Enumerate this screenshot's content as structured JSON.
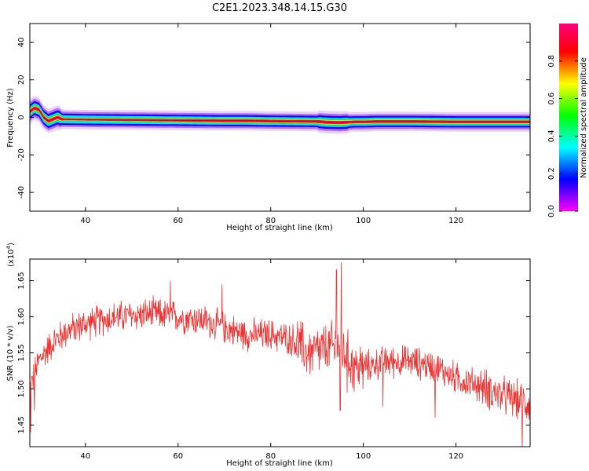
{
  "figure": {
    "title": "C2E1.2023.348.14.15.G30"
  },
  "chart_data": [
    {
      "type": "heatmap",
      "name": "spectrogram",
      "xlabel": "Height of straight line (km)",
      "ylabel": "Frequency (Hz)",
      "xlim": [
        28,
        136
      ],
      "ylim": [
        -50,
        50
      ],
      "x_ticks": [
        40,
        60,
        80,
        100,
        120
      ],
      "y_ticks": [
        -40,
        -20,
        0,
        20,
        40
      ],
      "colorbar": {
        "label": "Normalized spectral amplitude",
        "range": [
          0,
          1
        ],
        "ticks": [
          "0.0",
          "0.2",
          "0.4",
          "0.6",
          "0.8"
        ],
        "colormap": [
          "#ff00ff",
          "#0000ff",
          "#00ffff",
          "#00ff00",
          "#ffff00",
          "#ff0000",
          "#ff007f"
        ]
      },
      "ridge": {
        "x": [
          28,
          29,
          30,
          31,
          32,
          33,
          34,
          35,
          40,
          50,
          60,
          70,
          75,
          80,
          90,
          92,
          95,
          98,
          100,
          103,
          110,
          115,
          120,
          130,
          136
        ],
        "freq": [
          3,
          5,
          4,
          0,
          -2,
          -1,
          0,
          -1,
          -1.2,
          -1.4,
          -1.6,
          -1.8,
          -1.8,
          -2,
          -2.2,
          -2.6,
          -2.8,
          -2.4,
          -2.4,
          -2.2,
          -2.2,
          -2.3,
          -2.4,
          -2.4,
          -2.4
        ]
      }
    },
    {
      "type": "line",
      "name": "snr",
      "xlabel": "Height of straight line (km)",
      "ylabel": "SNR (10 * v/v)",
      "y_multiplier_label": "(x10",
      "y_multiplier_exp": "4",
      "y_multiplier_close": ")",
      "xlim": [
        28,
        136
      ],
      "ylim": [
        1.42,
        1.68
      ],
      "x_ticks": [
        40,
        60,
        80,
        100,
        120
      ],
      "y_ticks": [
        "1.45",
        "1.50",
        "1.55",
        "1.60",
        "1.65"
      ],
      "line_color": "#ee3333",
      "trend": {
        "x": [
          28,
          30,
          33,
          36,
          40,
          45,
          50,
          55,
          60,
          65,
          70,
          75,
          80,
          85,
          88,
          92,
          95,
          98,
          100,
          105,
          110,
          115,
          120,
          125,
          130,
          136
        ],
        "y": [
          1.5,
          1.54,
          1.565,
          1.58,
          1.59,
          1.598,
          1.602,
          1.604,
          1.6,
          1.596,
          1.585,
          1.575,
          1.575,
          1.568,
          1.55,
          1.555,
          1.56,
          1.53,
          1.53,
          1.538,
          1.538,
          1.532,
          1.515,
          1.505,
          1.49,
          1.48
        ]
      },
      "spikes": [
        {
          "x": 95.2,
          "y": 1.675
        },
        {
          "x": 94.2,
          "y": 1.665
        },
        {
          "x": 95.0,
          "y": 1.47
        },
        {
          "x": 96.5,
          "y": 1.495
        },
        {
          "x": 28.2,
          "y": 1.44
        },
        {
          "x": 29.0,
          "y": 1.47
        },
        {
          "x": 58.3,
          "y": 1.65
        },
        {
          "x": 69.5,
          "y": 1.645
        },
        {
          "x": 134.3,
          "y": 1.41
        },
        {
          "x": 104.2,
          "y": 1.475
        },
        {
          "x": 115.5,
          "y": 1.46
        }
      ]
    }
  ]
}
